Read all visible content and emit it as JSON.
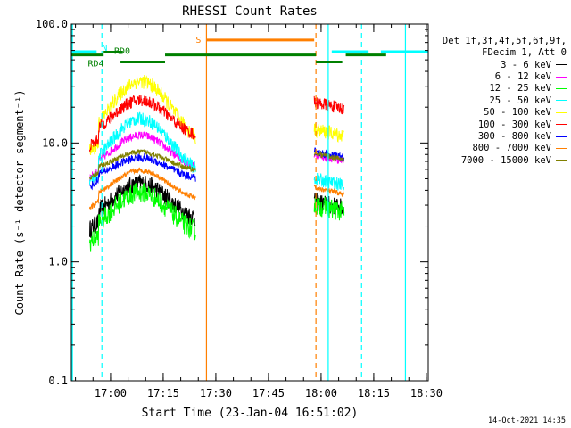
{
  "chart_data": {
    "type": "line",
    "title": "RHESSI Count Rates",
    "xlabel": "Start Time (23-Jan-04 16:51:02)",
    "ylabel": "Count Rate (s⁻¹ detector segment⁻¹)",
    "yscale": "log",
    "xlim_minutes_after_start": [
      -2.2,
      99.5
    ],
    "ylim": [
      0.1,
      100.0
    ],
    "x_ticks": [
      {
        "label": "17:00",
        "t": 8.97
      },
      {
        "label": "17:15",
        "t": 23.97
      },
      {
        "label": "17:30",
        "t": 38.97
      },
      {
        "label": "17:45",
        "t": 53.97
      },
      {
        "label": "18:00",
        "t": 68.97
      },
      {
        "label": "18:15",
        "t": 83.97
      },
      {
        "label": "18:30",
        "t": 98.97
      }
    ],
    "y_ticks": [
      {
        "label": "0.1",
        "v": 0.1
      },
      {
        "label": "1.0",
        "v": 1.0
      },
      {
        "label": "10.0",
        "v": 10.0
      },
      {
        "label": "100.0",
        "v": 100.0
      }
    ],
    "grid": false,
    "legend_position": "right",
    "legend_header": [
      "Det 1f,3f,4f,5f,6f,9f,",
      "FDecim 1, Att 0"
    ],
    "colors": {
      "night": "#00ffff",
      "saa": "#ff7f00",
      "att": "#008000"
    },
    "series": [
      {
        "name": "3 - 6 keV",
        "color": "#000000",
        "base": 2.2,
        "amp": 2.6,
        "noise": 0.18,
        "post": 3.2
      },
      {
        "name": "6 - 12 keV",
        "color": "#ff00ff",
        "base": 6.0,
        "amp": 6.2,
        "noise": 0.08,
        "post": 8.0
      },
      {
        "name": "12 - 25 keV",
        "color": "#00ff00",
        "base": 1.7,
        "amp": 2.3,
        "noise": 0.2,
        "post": 3.0
      },
      {
        "name": "25 - 50 keV",
        "color": "#00ffff",
        "base": 5.5,
        "amp": 11.0,
        "noise": 0.13,
        "post": 5.0
      },
      {
        "name": "50 - 100 keV",
        "color": "#ffff00",
        "base": 10.0,
        "amp": 24.0,
        "noise": 0.14,
        "post": 13.0
      },
      {
        "name": "100 - 300 keV",
        "color": "#ff0000",
        "base": 11.0,
        "amp": 13.0,
        "noise": 0.12,
        "post": 22.0
      },
      {
        "name": "300 - 800 keV",
        "color": "#0000ff",
        "base": 5.0,
        "amp": 3.0,
        "noise": 0.08,
        "post": 8.5
      },
      {
        "name": "800 - 7000 keV",
        "color": "#ff7f00",
        "base": 3.3,
        "amp": 2.9,
        "noise": 0.05,
        "post": 4.2
      },
      {
        "name": "7000 - 15000 keV",
        "color": "#808000",
        "base": 5.8,
        "amp": 3.2,
        "noise": 0.05,
        "post": 8.2
      }
    ],
    "data_segments": [
      [
        3.0,
        25.0,
        33.2
      ],
      [
        67.0,
        73.5,
        75.5
      ]
    ],
    "annotations": {
      "night_intervals": [
        [
          -2.2,
          6.5
        ],
        [
          71.0,
          80.5
        ],
        [
          93.0,
          99.5
        ]
      ],
      "night_bands": [
        [
          -2.2,
          5.0,
          58.5
        ],
        [
          72.0,
          82.5,
          58.5
        ],
        [
          86.0,
          99.5,
          58.5
        ]
      ],
      "night_label": "N",
      "saa_interval": [
        36.3,
        67.5
      ],
      "saa_band": [
        36.3,
        67.0,
        73.5
      ],
      "saa_label": "S",
      "att_segments": [
        {
          "t0": -2.2,
          "t1": 7.0,
          "y": 55.0
        },
        {
          "t0": 7.0,
          "t1": 12.5,
          "y": 58.0
        },
        {
          "t0": 11.8,
          "t1": 24.5,
          "y": 48.0
        },
        {
          "t0": 24.5,
          "t1": 36.3,
          "y": 55.0
        },
        {
          "t0": 36.3,
          "t1": 67.5,
          "y": 55.0
        },
        {
          "t0": 67.5,
          "t1": 75.0,
          "y": 48.0
        },
        {
          "t0": 76.0,
          "t1": 87.5,
          "y": 55.0
        }
      ],
      "att_labels": [
        {
          "text": "RD4",
          "t": 2.5,
          "y": 47.0
        },
        {
          "text": "RD0",
          "t": 10.0,
          "y": 60.0
        }
      ]
    }
  },
  "footer": {
    "timestamp": "14-Oct-2021 14:35"
  }
}
